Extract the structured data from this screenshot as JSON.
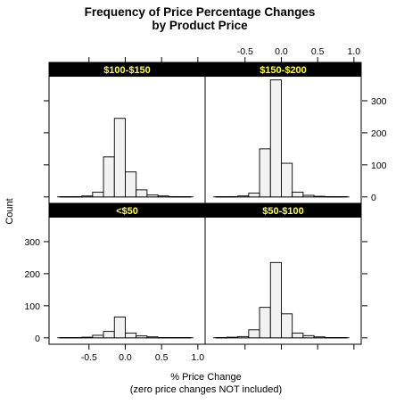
{
  "chart_data": {
    "type": "bar",
    "title_lines": [
      "Frequency of Price Percentage Changes",
      "by Product Price"
    ],
    "xlabel_lines": [
      "% Price Change",
      "(zero price changes NOT included)"
    ],
    "ylabel": "Count",
    "xlim": [
      -1.05,
      1.1
    ],
    "ylim": [
      -20,
      375
    ],
    "x_ticks": [
      -0.5,
      0.0,
      0.5,
      1.0
    ],
    "x_tick_labels": [
      "-0.5",
      "0.0",
      "0.5",
      "1.0"
    ],
    "y_ticks": [
      0,
      100,
      200,
      300
    ],
    "y_tick_labels": [
      "0",
      "100",
      "200",
      "300"
    ],
    "bin_edges": [
      -0.9,
      -0.75,
      -0.6,
      -0.45,
      -0.3,
      -0.15,
      0.0,
      0.15,
      0.3,
      0.45,
      0.6,
      0.75,
      0.9
    ],
    "bar_color": "#f2f2f2",
    "strip_color": "#000000",
    "strip_text_color": "#ffff3c",
    "panels": [
      {
        "name": "$100-$150",
        "counts": [
          1,
          1,
          3,
          15,
          125,
          245,
          78,
          22,
          6,
          3,
          1,
          1
        ]
      },
      {
        "name": "$150-$200",
        "counts": [
          1,
          1,
          3,
          12,
          150,
          365,
          105,
          15,
          5,
          2,
          1,
          1
        ]
      },
      {
        "name": "<$50",
        "counts": [
          1,
          1,
          2,
          8,
          20,
          65,
          15,
          6,
          3,
          1,
          1,
          1
        ]
      },
      {
        "name": "$50-$100",
        "counts": [
          1,
          2,
          4,
          25,
          95,
          235,
          75,
          15,
          7,
          3,
          1,
          1
        ]
      }
    ]
  }
}
